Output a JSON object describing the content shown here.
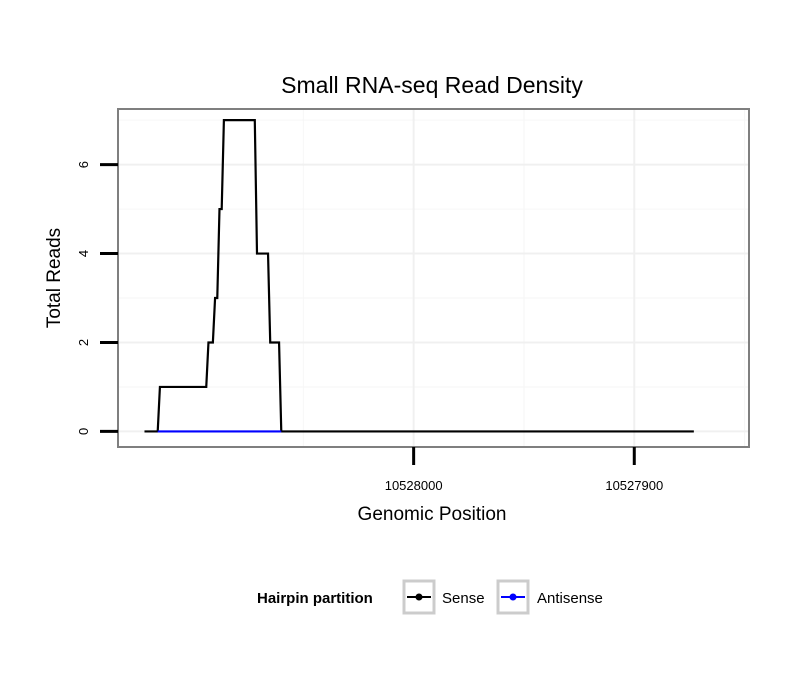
{
  "chart_data": {
    "type": "line",
    "title": "Small RNA-seq Read Density",
    "xlabel": "Genomic Position",
    "ylabel": "Total Reads",
    "x_axis_reversed": true,
    "xlim": [
      10528134,
      10527848
    ],
    "ylim": [
      -0.35,
      7.25
    ],
    "x_ticks": [
      10528000,
      10527900
    ],
    "x_tick_labels": [
      "10528000",
      "10527900"
    ],
    "y_ticks": [
      0,
      2,
      4,
      6
    ],
    "y_tick_labels": [
      "0",
      "2",
      "4",
      "6"
    ],
    "grid": true,
    "legend_position": "bottom",
    "legend_title": "Hairpin partition",
    "series": [
      {
        "name": "Sense",
        "color": "#000000",
        "points": [
          [
            10528122,
            0
          ],
          [
            10528116,
            0
          ],
          [
            10528115,
            1
          ],
          [
            10528094,
            1
          ],
          [
            10528093,
            2
          ],
          [
            10528091,
            2
          ],
          [
            10528090,
            3
          ],
          [
            10528089,
            3
          ],
          [
            10528088,
            5
          ],
          [
            10528087,
            5
          ],
          [
            10528086,
            7
          ],
          [
            10528072,
            7
          ],
          [
            10528071,
            4
          ],
          [
            10528066,
            4
          ],
          [
            10528065,
            2
          ],
          [
            10528061,
            2
          ],
          [
            10528060,
            0
          ],
          [
            10527873,
            0
          ]
        ]
      },
      {
        "name": "Antisense",
        "color": "#0000ff",
        "points": [
          [
            10528116,
            0
          ],
          [
            10528060,
            0
          ]
        ]
      }
    ]
  }
}
